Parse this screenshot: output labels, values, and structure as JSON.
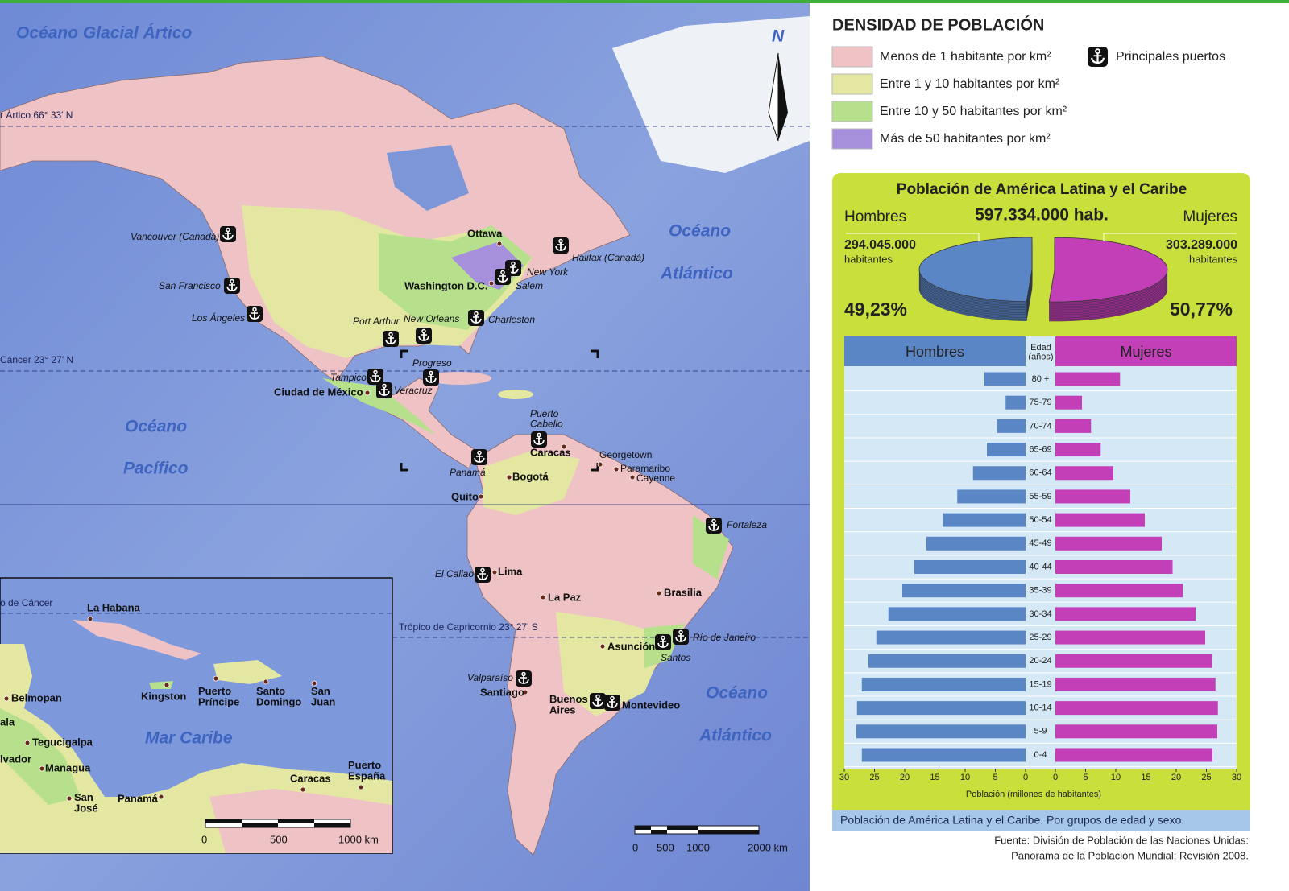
{
  "map": {
    "labels": [
      "Océano Glacial Ártico",
      "Océano",
      "Atlántico",
      "Océano",
      "Pacífico",
      "Mar Caribe",
      "Océano",
      "Atlántico",
      "r Ártico 66° 33' N",
      "Cáncer 23° 27' N",
      "o de Cáncer",
      "Trópico de Capricornio 23° 27' S",
      "Vancouver (Canadá)",
      "San Francisco",
      "Los Ángeles",
      "Halifax (Canadá)",
      "New York",
      "Salem",
      "Charleston",
      "Port Arthur",
      "New Orleans",
      "Progreso",
      "Tampico",
      "Veracruz",
      "Puerto\nCabello",
      "Panamá",
      "El Callao",
      "Fortaleza",
      "Río de Janeiro",
      "Santos",
      "Valparaíso",
      "Ottawa",
      "Washington D.C.",
      "Ciudad de México",
      "Caracas",
      "Georgetown",
      "Paramaribo",
      "Cayenne",
      "Bogotá",
      "Quito",
      "Lima",
      "La Paz",
      "Brasilia",
      "Asunción",
      "Santiago",
      "Buenos\nAires",
      "Montevideo",
      "La Habana",
      "Kingston",
      "Puerto\nPríncipe",
      "Santo\nDomingo",
      "San\nJuan",
      "Belmopan",
      "ala",
      "Tegucigalpa",
      "lvador",
      "Managua",
      "San\nJosé",
      "Panamá",
      "Caracas",
      "Puerto\nEspaña",
      "0",
      "500",
      "1000 km",
      "0",
      "500",
      "1000",
      "2000 km",
      "N"
    ]
  },
  "legend": {
    "title": "DENSIDAD DE POBLACIÓN",
    "items": [
      {
        "label": "Menos de 1 habitante por km²",
        "color": "#efc3c6"
      },
      {
        "label": "Entre 1 y 10 habitantes por km²",
        "color": "#e3e7a2"
      },
      {
        "label": "Entre 10 y 50 habitantes por km²",
        "color": "#b6e08c"
      },
      {
        "label": "Más de 50 habitantes por km²",
        "color": "#a690dc"
      }
    ],
    "ports": "Principales puertos"
  },
  "chart_data": [
    {
      "type": "pie",
      "title": "Población de América Latina y el Caribe",
      "total": 597334000,
      "total_label": "597.334.000 hab.",
      "series": [
        {
          "name": "Hombres",
          "color": "#5b86c6",
          "values": [
            49.23
          ],
          "value_labels": [
            "49,23%"
          ],
          "population": 294045000,
          "population_label": "294.045.000",
          "unit": "habitantes"
        },
        {
          "name": "Mujeres",
          "color": "#c23fb8",
          "values": [
            50.77
          ],
          "value_labels": [
            "50,77%"
          ],
          "population": 303289000,
          "population_label": "303.289.000",
          "unit": "habitantes"
        }
      ]
    },
    {
      "type": "pyramid",
      "category_title": "Edad\n(años)",
      "categories": [
        "80 +",
        "75-79",
        "70-74",
        "65-69",
        "60-64",
        "55-59",
        "50-54",
        "45-49",
        "40-44",
        "35-39",
        "30-34",
        "25-29",
        "20-24",
        "15-19",
        "10-14",
        "5-9",
        "0-4"
      ],
      "series": [
        {
          "name": "Hombres",
          "color": "#5b86c6",
          "values": [
            6.8,
            3.3,
            4.7,
            6.4,
            8.7,
            11.3,
            13.7,
            16.4,
            18.4,
            20.4,
            22.7,
            24.7,
            26,
            27.1,
            27.9,
            28,
            27.1
          ]
        },
        {
          "name": "Mujeres",
          "color": "#c23fb8",
          "values": [
            10.7,
            4.4,
            5.9,
            7.5,
            9.6,
            12.4,
            14.8,
            17.6,
            19.4,
            21.1,
            23.2,
            24.8,
            25.9,
            26.5,
            26.9,
            26.8,
            26
          ]
        }
      ],
      "xlim": [
        0,
        30
      ],
      "xticks": [
        0,
        5,
        10,
        15,
        20,
        25,
        30
      ],
      "xlabel": "Población (millones de habitantes)",
      "caption": "Población de América Latina y el Caribe. Por grupos de edad y sexo."
    }
  ],
  "source": [
    "Fuente: División de Población de las Naciones Unidas:",
    "Panorama de la Población Mundial: Revisión 2008."
  ]
}
